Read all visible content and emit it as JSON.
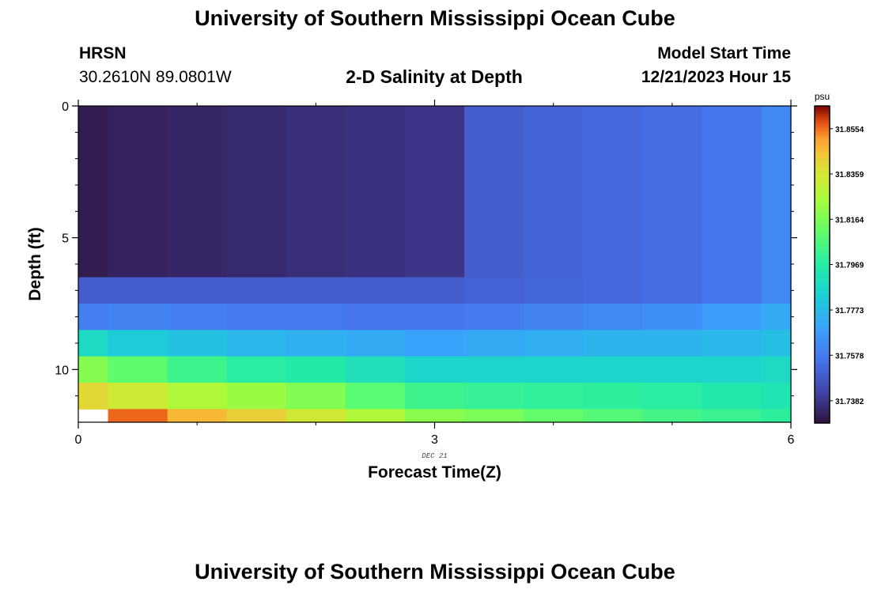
{
  "header": {
    "title": "University of Southern Mississippi Ocean Cube",
    "station": "HRSN",
    "coords": "30.2610N  89.0801W",
    "plot_title": "2-D Salinity at Depth",
    "model_label": "Model Start Time",
    "model_time": "12/21/2023 Hour 15"
  },
  "footer": {
    "title": "University of Southern Mississippi Ocean Cube"
  },
  "chart_data": {
    "type": "heatmap",
    "title": "2-D Salinity at Depth",
    "xlabel": "Forecast Time(Z)",
    "ylabel": "Depth (ft)",
    "x_date_label": "DEC 21",
    "xlim": [
      0,
      6
    ],
    "ylim": [
      12,
      0
    ],
    "x_ticks": [
      "0",
      "3",
      "6"
    ],
    "y_ticks": [
      "0",
      "5",
      "10"
    ],
    "colorbar": {
      "unit": "psu",
      "vmin": 31.7286,
      "vmax": 31.8652,
      "ticks": [
        "31.8554",
        "31.8359",
        "31.8164",
        "31.7969",
        "31.7773",
        "31.7578",
        "31.7382"
      ]
    },
    "x_edges": [
      0,
      0.25,
      0.75,
      1.25,
      1.75,
      2.25,
      2.75,
      3.25,
      3.75,
      4.25,
      4.75,
      5.25,
      5.75,
      6
    ],
    "y_edges": [
      0,
      6.5,
      7.5,
      8.5,
      9.5,
      10.5,
      11.5,
      12
    ],
    "values": [
      [
        31.7312,
        31.733,
        31.734,
        31.735,
        31.736,
        31.737,
        31.738,
        31.7495,
        31.751,
        31.7525,
        31.754,
        31.756,
        31.762
      ],
      [
        31.7495,
        31.7495,
        31.7495,
        31.7495,
        31.7495,
        31.7495,
        31.7495,
        31.7505,
        31.7515,
        31.7525,
        31.754,
        31.756,
        31.762
      ],
      [
        31.759,
        31.76,
        31.759,
        31.758,
        31.757,
        31.756,
        31.756,
        31.758,
        31.76,
        31.762,
        31.764,
        31.768,
        31.772
      ],
      [
        31.788,
        31.782,
        31.779,
        31.776,
        31.774,
        31.772,
        31.77,
        31.772,
        31.773,
        31.775,
        31.775,
        31.776,
        31.778
      ],
      [
        31.818,
        31.81,
        31.803,
        31.798,
        31.796,
        31.791,
        31.786,
        31.786,
        31.786,
        31.786,
        31.786,
        31.786,
        31.788
      ],
      [
        31.84,
        31.834,
        31.827,
        31.822,
        31.817,
        31.809,
        31.803,
        31.801,
        31.8,
        31.799,
        31.798,
        31.795,
        31.793
      ],
      [
        null,
        31.856,
        31.847,
        31.842,
        31.835,
        31.827,
        31.819,
        31.816,
        31.811,
        31.808,
        31.804,
        31.802,
        31.799
      ]
    ]
  }
}
